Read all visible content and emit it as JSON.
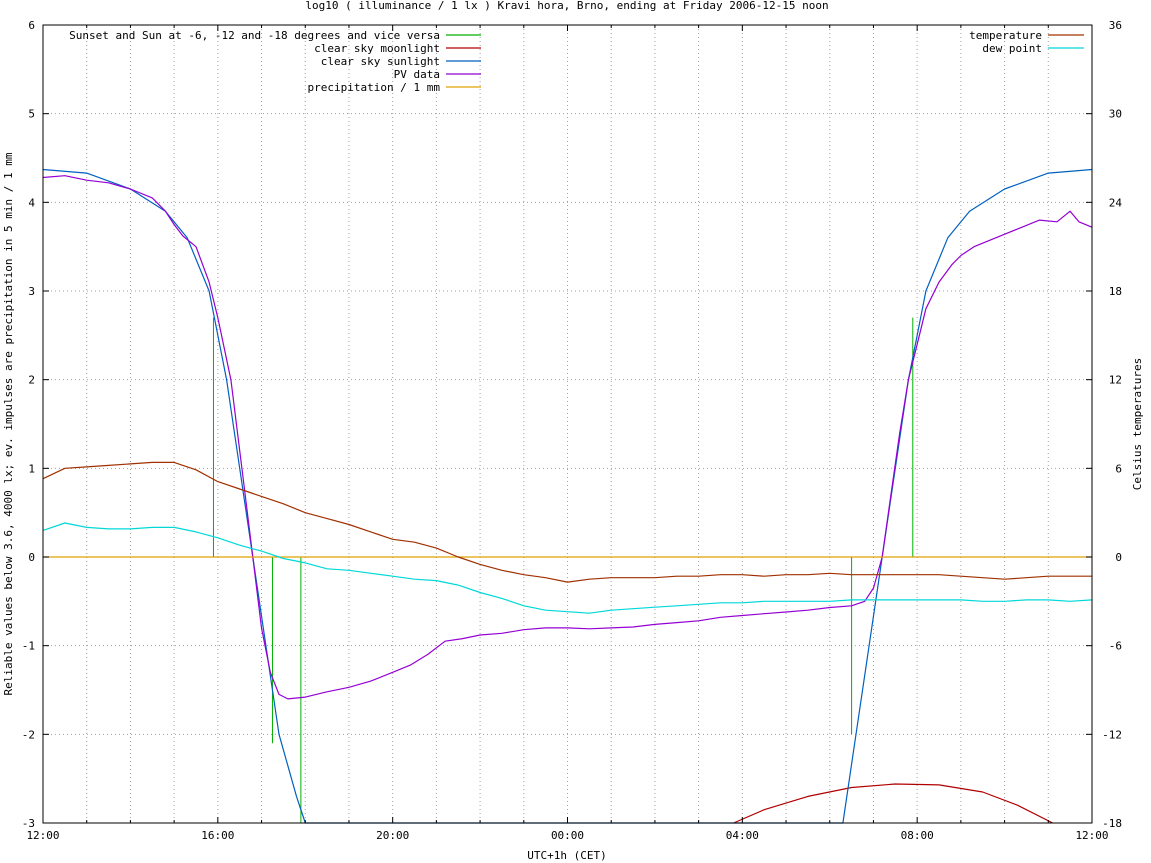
{
  "chart_data": {
    "type": "line",
    "title": "log10 ( illuminance / 1 lx ) Kravi hora, Brno, ending at Friday 2006-12-15 noon",
    "xlabel": "UTC+1h (CET)",
    "ylabel": "Reliable values below 3.6, 4000 lx; ev. impulses are precipitation in 5 min / 1 mm",
    "y2label": "Celsius temperatures",
    "xlim": [
      12,
      36
    ],
    "ylim": [
      -3,
      6
    ],
    "y2lim": [
      -18,
      36
    ],
    "x_ticks": [
      {
        "v": 12,
        "label": "12:00"
      },
      {
        "v": 16,
        "label": "16:00"
      },
      {
        "v": 20,
        "label": "20:00"
      },
      {
        "v": 24,
        "label": "00:00"
      },
      {
        "v": 28,
        "label": "04:00"
      },
      {
        "v": 32,
        "label": "08:00"
      },
      {
        "v": 36,
        "label": "12:00"
      }
    ],
    "y_ticks": [
      {
        "v": -3,
        "label": "-3"
      },
      {
        "v": -2,
        "label": "-2"
      },
      {
        "v": -1,
        "label": "-1"
      },
      {
        "v": 0,
        "label": "0"
      },
      {
        "v": 1,
        "label": "1"
      },
      {
        "v": 2,
        "label": "2"
      },
      {
        "v": 3,
        "label": "3"
      },
      {
        "v": 4,
        "label": "4"
      },
      {
        "v": 5,
        "label": "5"
      },
      {
        "v": 6,
        "label": "6"
      }
    ],
    "y2_ticks": [
      {
        "v": -18,
        "label": "-18"
      },
      {
        "v": -12,
        "label": "-12"
      },
      {
        "v": -6,
        "label": "-6"
      },
      {
        "v": 0,
        "label": "0"
      },
      {
        "v": 6,
        "label": "6"
      },
      {
        "v": 12,
        "label": "12"
      },
      {
        "v": 18,
        "label": "18"
      },
      {
        "v": 24,
        "label": "24"
      },
      {
        "v": 30,
        "label": "30"
      },
      {
        "v": 36,
        "label": "36"
      }
    ],
    "grid": true,
    "legend_left_position": "top-left",
    "legend_right_position": "top-right",
    "series": [
      {
        "name": "Sunset and Sun at -6, -12 and -18 degrees and vice versa",
        "color": "#00b000",
        "kind": "impulses",
        "legend": "left",
        "points": [
          [
            15.9,
            2.7
          ],
          [
            17.25,
            -2.1
          ],
          [
            17.9,
            -3.0
          ],
          [
            29.8,
            0.0
          ],
          [
            30.5,
            -2.0
          ],
          [
            31.9,
            2.7
          ]
        ]
      },
      {
        "name": "clear sky moonlight",
        "color": "#b00000",
        "kind": "line",
        "legend": "left",
        "points": [
          [
            27.8,
            -3.0
          ],
          [
            28.5,
            -2.85
          ],
          [
            29.5,
            -2.7
          ],
          [
            30.5,
            -2.6
          ],
          [
            31.5,
            -2.56
          ],
          [
            32.5,
            -2.57
          ],
          [
            33.5,
            -2.65
          ],
          [
            34.3,
            -2.8
          ],
          [
            35.1,
            -3.0
          ]
        ]
      },
      {
        "name": "clear sky sunlight",
        "color": "#0060c0",
        "kind": "line",
        "legend": "left",
        "points": [
          [
            12.0,
            4.37
          ],
          [
            13.0,
            4.33
          ],
          [
            14.0,
            4.15
          ],
          [
            14.8,
            3.9
          ],
          [
            15.3,
            3.6
          ],
          [
            15.8,
            3.0
          ],
          [
            16.2,
            2.0
          ],
          [
            16.5,
            1.0
          ],
          [
            16.8,
            0.0
          ],
          [
            17.1,
            -1.0
          ],
          [
            17.4,
            -2.0
          ],
          [
            17.8,
            -2.7
          ],
          [
            18.0,
            -3.0
          ],
          [
            30.3,
            -3.0
          ],
          [
            30.6,
            -2.0
          ],
          [
            30.9,
            -1.0
          ],
          [
            31.2,
            0.0
          ],
          [
            31.5,
            1.0
          ],
          [
            31.8,
            2.0
          ],
          [
            32.2,
            3.0
          ],
          [
            32.7,
            3.6
          ],
          [
            33.2,
            3.9
          ],
          [
            34.0,
            4.15
          ],
          [
            35.0,
            4.33
          ],
          [
            36.0,
            4.37
          ]
        ]
      },
      {
        "name": "PV data",
        "color": "#9500d3",
        "kind": "line",
        "legend": "left",
        "points": [
          [
            12.0,
            4.28
          ],
          [
            12.5,
            4.3
          ],
          [
            13.0,
            4.25
          ],
          [
            13.5,
            4.22
          ],
          [
            14.0,
            4.15
          ],
          [
            14.5,
            4.05
          ],
          [
            14.8,
            3.9
          ],
          [
            15.0,
            3.75
          ],
          [
            15.2,
            3.62
          ],
          [
            15.5,
            3.5
          ],
          [
            15.8,
            3.1
          ],
          [
            16.0,
            2.7
          ],
          [
            16.3,
            2.0
          ],
          [
            16.6,
            0.8
          ],
          [
            16.8,
            0.0
          ],
          [
            17.0,
            -0.8
          ],
          [
            17.2,
            -1.3
          ],
          [
            17.4,
            -1.55
          ],
          [
            17.6,
            -1.6
          ],
          [
            18.0,
            -1.58
          ],
          [
            18.5,
            -1.52
          ],
          [
            19.0,
            -1.47
          ],
          [
            19.5,
            -1.4
          ],
          [
            20.0,
            -1.3
          ],
          [
            20.4,
            -1.22
          ],
          [
            20.8,
            -1.1
          ],
          [
            21.2,
            -0.95
          ],
          [
            21.6,
            -0.92
          ],
          [
            22.0,
            -0.88
          ],
          [
            22.5,
            -0.86
          ],
          [
            23.0,
            -0.82
          ],
          [
            23.5,
            -0.8
          ],
          [
            24.0,
            -0.8
          ],
          [
            24.5,
            -0.81
          ],
          [
            25.0,
            -0.8
          ],
          [
            25.5,
            -0.79
          ],
          [
            26.0,
            -0.76
          ],
          [
            26.5,
            -0.74
          ],
          [
            27.0,
            -0.72
          ],
          [
            27.5,
            -0.68
          ],
          [
            28.0,
            -0.66
          ],
          [
            28.5,
            -0.64
          ],
          [
            29.0,
            -0.62
          ],
          [
            29.5,
            -0.6
          ],
          [
            30.0,
            -0.57
          ],
          [
            30.5,
            -0.55
          ],
          [
            30.8,
            -0.5
          ],
          [
            31.0,
            -0.35
          ],
          [
            31.2,
            0.0
          ],
          [
            31.4,
            0.7
          ],
          [
            31.6,
            1.4
          ],
          [
            31.8,
            2.0
          ],
          [
            32.0,
            2.4
          ],
          [
            32.2,
            2.8
          ],
          [
            32.5,
            3.1
          ],
          [
            32.8,
            3.3
          ],
          [
            33.0,
            3.4
          ],
          [
            33.3,
            3.5
          ],
          [
            33.8,
            3.6
          ],
          [
            34.3,
            3.7
          ],
          [
            34.8,
            3.8
          ],
          [
            35.2,
            3.78
          ],
          [
            35.5,
            3.9
          ],
          [
            35.7,
            3.78
          ],
          [
            36.0,
            3.72
          ]
        ]
      },
      {
        "name": "precipitation / 1 mm",
        "color": "#e0a000",
        "kind": "line",
        "legend": "left",
        "points": [
          [
            12.0,
            0.0
          ],
          [
            36.0,
            0.0
          ]
        ]
      },
      {
        "name": "temperature",
        "color": "#a03000",
        "kind": "line",
        "axis": "y2",
        "legend": "right",
        "points": [
          [
            12.0,
            5.3
          ],
          [
            12.5,
            6.0
          ],
          [
            13.0,
            6.1
          ],
          [
            13.5,
            6.2
          ],
          [
            14.0,
            6.3
          ],
          [
            14.5,
            6.4
          ],
          [
            15.0,
            6.4
          ],
          [
            15.5,
            5.9
          ],
          [
            16.0,
            5.1
          ],
          [
            16.5,
            4.6
          ],
          [
            17.0,
            4.1
          ],
          [
            17.5,
            3.6
          ],
          [
            18.0,
            3.0
          ],
          [
            18.5,
            2.6
          ],
          [
            19.0,
            2.2
          ],
          [
            19.5,
            1.7
          ],
          [
            20.0,
            1.2
          ],
          [
            20.5,
            1.0
          ],
          [
            21.0,
            0.6
          ],
          [
            21.5,
            0.0
          ],
          [
            22.0,
            -0.5
          ],
          [
            22.5,
            -0.9
          ],
          [
            23.0,
            -1.2
          ],
          [
            23.5,
            -1.4
          ],
          [
            24.0,
            -1.7
          ],
          [
            24.5,
            -1.5
          ],
          [
            25.0,
            -1.4
          ],
          [
            25.5,
            -1.4
          ],
          [
            26.0,
            -1.4
          ],
          [
            26.5,
            -1.3
          ],
          [
            27.0,
            -1.3
          ],
          [
            27.5,
            -1.2
          ],
          [
            28.0,
            -1.2
          ],
          [
            28.5,
            -1.3
          ],
          [
            29.0,
            -1.2
          ],
          [
            29.5,
            -1.2
          ],
          [
            30.0,
            -1.1
          ],
          [
            30.5,
            -1.2
          ],
          [
            31.0,
            -1.2
          ],
          [
            31.5,
            -1.2
          ],
          [
            32.0,
            -1.2
          ],
          [
            32.5,
            -1.2
          ],
          [
            33.0,
            -1.3
          ],
          [
            33.5,
            -1.4
          ],
          [
            34.0,
            -1.5
          ],
          [
            34.5,
            -1.4
          ],
          [
            35.0,
            -1.3
          ],
          [
            35.5,
            -1.3
          ],
          [
            36.0,
            -1.3
          ]
        ]
      },
      {
        "name": "dew point",
        "color": "#00d8d8",
        "kind": "line",
        "axis": "y2",
        "legend": "right",
        "points": [
          [
            12.0,
            1.8
          ],
          [
            12.5,
            2.3
          ],
          [
            13.0,
            2.0
          ],
          [
            13.5,
            1.9
          ],
          [
            14.0,
            1.9
          ],
          [
            14.5,
            2.0
          ],
          [
            15.0,
            2.0
          ],
          [
            15.5,
            1.7
          ],
          [
            16.0,
            1.3
          ],
          [
            16.5,
            0.8
          ],
          [
            17.0,
            0.4
          ],
          [
            17.5,
            -0.1
          ],
          [
            18.0,
            -0.4
          ],
          [
            18.5,
            -0.8
          ],
          [
            19.0,
            -0.9
          ],
          [
            19.5,
            -1.1
          ],
          [
            20.0,
            -1.3
          ],
          [
            20.5,
            -1.5
          ],
          [
            21.0,
            -1.6
          ],
          [
            21.5,
            -1.9
          ],
          [
            22.0,
            -2.4
          ],
          [
            22.5,
            -2.8
          ],
          [
            23.0,
            -3.3
          ],
          [
            23.5,
            -3.6
          ],
          [
            24.0,
            -3.7
          ],
          [
            24.5,
            -3.8
          ],
          [
            25.0,
            -3.6
          ],
          [
            25.5,
            -3.5
          ],
          [
            26.0,
            -3.4
          ],
          [
            26.5,
            -3.3
          ],
          [
            27.0,
            -3.2
          ],
          [
            27.5,
            -3.1
          ],
          [
            28.0,
            -3.1
          ],
          [
            28.5,
            -3.0
          ],
          [
            29.0,
            -3.0
          ],
          [
            29.5,
            -3.0
          ],
          [
            30.0,
            -3.0
          ],
          [
            30.5,
            -2.9
          ],
          [
            31.0,
            -2.9
          ],
          [
            31.5,
            -2.9
          ],
          [
            32.0,
            -2.9
          ],
          [
            32.5,
            -2.9
          ],
          [
            33.0,
            -2.9
          ],
          [
            33.5,
            -3.0
          ],
          [
            34.0,
            -3.0
          ],
          [
            34.5,
            -2.9
          ],
          [
            35.0,
            -2.9
          ],
          [
            35.5,
            -3.0
          ],
          [
            36.0,
            -2.9
          ]
        ]
      }
    ]
  }
}
